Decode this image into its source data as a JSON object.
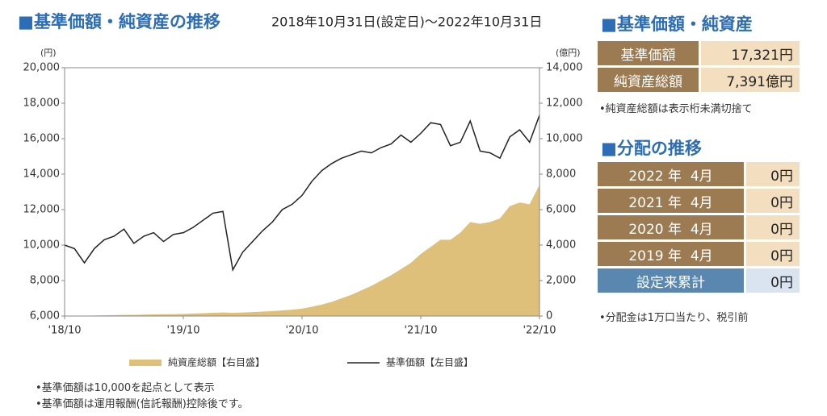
{
  "chart_data": {
    "type": "line",
    "title": "■基準価額・純資産の推移",
    "subtitle": "2018年10月31日(設定日)～2022年10月31日",
    "y_label": "(円)",
    "y2_label": "(億円)",
    "categories": [
      "'18/10",
      null,
      null,
      null,
      null,
      null,
      null,
      null,
      null,
      null,
      null,
      null,
      "'19/10",
      null,
      null,
      null,
      null,
      null,
      null,
      null,
      null,
      null,
      null,
      null,
      "'20/10",
      null,
      null,
      null,
      null,
      null,
      null,
      null,
      null,
      null,
      null,
      null,
      "'21/10",
      null,
      null,
      null,
      null,
      null,
      null,
      null,
      null,
      null,
      null,
      null,
      "'22/10"
    ],
    "series": [
      {
        "name": "純資産総額【右目盛】",
        "type": "area",
        "axis": "y2",
        "color": "#dfc07a",
        "values": [
          1,
          10,
          20,
          30,
          40,
          50,
          60,
          70,
          80,
          90,
          100,
          110,
          120,
          140,
          160,
          180,
          200,
          180,
          200,
          220,
          250,
          280,
          320,
          360,
          420,
          520,
          650,
          800,
          1000,
          1200,
          1450,
          1700,
          2000,
          2300,
          2650,
          3000,
          3500,
          3900,
          4300,
          4300,
          4700,
          5300,
          5200,
          5300,
          5500,
          6200,
          6400,
          6300,
          7391
        ]
      },
      {
        "name": "基準価額【左目盛】",
        "type": "line",
        "axis": "y",
        "color": "#222222",
        "values": [
          10000,
          9800,
          9000,
          9800,
          10300,
          10500,
          10900,
          10100,
          10500,
          10700,
          10200,
          10600,
          10700,
          11000,
          11400,
          11800,
          11900,
          8600,
          9600,
          10200,
          10800,
          11300,
          12000,
          12300,
          12800,
          13600,
          14200,
          14600,
          14900,
          15100,
          15300,
          15200,
          15500,
          15700,
          16200,
          15800,
          16300,
          16900,
          16800,
          15600,
          15800,
          17000,
          15300,
          15200,
          14900,
          16100,
          16500,
          15800,
          17321
        ]
      }
    ],
    "ylim": [
      6000,
      20000
    ],
    "yticks": [
      {
        "value": 6000,
        "label": "6,000"
      },
      {
        "value": 8000,
        "label": "8,000"
      },
      {
        "value": 10000,
        "label": "10,000"
      },
      {
        "value": 12000,
        "label": "12,000"
      },
      {
        "value": 14000,
        "label": "14,000"
      },
      {
        "value": 16000,
        "label": "16,000"
      },
      {
        "value": 18000,
        "label": "18,000"
      },
      {
        "value": 20000,
        "label": "20,000"
      }
    ],
    "y2lim": [
      0,
      14000
    ],
    "y2ticks": [
      0,
      {
        "value": 2000,
        "label": "2,000"
      },
      {
        "value": 4000,
        "label": "4,000"
      },
      {
        "value": 6000,
        "label": "6,000"
      },
      {
        "value": 8000,
        "label": "8,000"
      },
      {
        "value": 10000,
        "label": "10,000"
      },
      {
        "value": 12000,
        "label": "12,000"
      },
      {
        "value": 14000,
        "label": "14,000"
      }
    ],
    "notes": [
      "•基準価額は10,000を起点として表示",
      "•基準価額は運用報酬(信託報酬)控除後です。"
    ]
  },
  "nav_panel": {
    "title": "■基準価額・純資産",
    "rows": [
      [
        "基準価額",
        "17,321円"
      ],
      [
        "純資産総額",
        "7,391億円"
      ]
    ],
    "note": "•純資産総額は表示桁未満切捨て"
  },
  "distribution_panel": {
    "title": "■分配の推移",
    "rows": [
      [
        "2022 年  4月",
        "0円"
      ],
      [
        "2021 年  4月",
        "0円"
      ],
      [
        "2020 年  4月",
        "0円"
      ],
      [
        "2019 年  4月",
        "0円"
      ]
    ],
    "total": [
      "設定来累計",
      "0円"
    ],
    "note": "•分配金は1万口当たり、税引前"
  }
}
